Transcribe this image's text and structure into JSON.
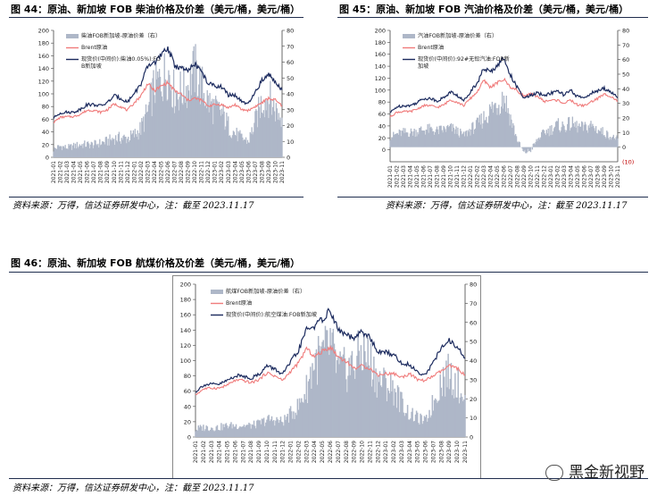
{
  "figures": [
    {
      "title": "图 44：原油、新加坡 FOB 柴油价格及价差（美元/桶，美元/桶）",
      "source": "资料来源：万得，信达证券研发中心，注：截至 2023.11.17"
    },
    {
      "title": "图 45：原油、新加坡 FOB 汽油价格及价差（美元/桶，美元/桶）",
      "source": "资料来源：万得，信达证券研发中心，注：截至 2023.11.17"
    },
    {
      "title": "图 46：原油、新加坡 FOB 航煤价格及价差（美元/桶，美元/桶）",
      "source": "资料来源：万得，信达证券研发中心，注：截至 2023.11.17"
    }
  ],
  "watermark": "黑金新视野",
  "colors": {
    "spread": "#aeb7c8",
    "brent": "#f07c7c",
    "product": "#1b2a5e",
    "rule": "#1f2d4e"
  },
  "months": [
    "2021-01",
    "2021-02",
    "2021-03",
    "2021-04",
    "2021-05",
    "2021-06",
    "2021-07",
    "2021-08",
    "2021-09",
    "2021-10",
    "2021-11",
    "2021-12",
    "2022-01",
    "2022-02",
    "2022-03",
    "2022-04",
    "2022-05",
    "2022-06",
    "2022-07",
    "2022-08",
    "2022-09",
    "2022-10",
    "2022-11",
    "2022-12",
    "2023-01",
    "2023-02",
    "2023-03",
    "2023-04",
    "2023-05",
    "2023-06",
    "2023-07",
    "2023-08",
    "2023-09",
    "2023-10",
    "2023-11"
  ],
  "brent": [
    55,
    63,
    64,
    64,
    68,
    74,
    74,
    71,
    75,
    84,
    80,
    74,
    86,
    97,
    116,
    105,
    112,
    118,
    105,
    99,
    90,
    93,
    90,
    81,
    83,
    83,
    78,
    83,
    75,
    74,
    80,
    86,
    93,
    90,
    81
  ],
  "chart_data": [
    {
      "type": "line",
      "y_left": {
        "ylim": [
          0,
          200
        ],
        "ticks": [
          0,
          20,
          40,
          60,
          80,
          100,
          120,
          140,
          160,
          180,
          200
        ]
      },
      "y_right": {
        "ylim": [
          0,
          80
        ],
        "ticks": [
          0,
          10,
          20,
          30,
          40,
          50,
          60,
          70,
          80
        ]
      },
      "x": "months",
      "series": [
        {
          "name": "柴油FOB新加坡-原油价差（右）",
          "axis": "right",
          "style": "area",
          "values": [
            5,
            7,
            6,
            7,
            8,
            8,
            8,
            9,
            10,
            12,
            12,
            12,
            14,
            18,
            28,
            45,
            48,
            55,
            40,
            42,
            45,
            55,
            45,
            35,
            30,
            28,
            20,
            15,
            12,
            10,
            22,
            35,
            38,
            30,
            25
          ]
        },
        {
          "name": "Brent原油",
          "axis": "left",
          "values": "brent"
        },
        {
          "name": "现货价(中间价):柴油0.05%):FOB新加坡",
          "axis": "left",
          "values": [
            62,
            70,
            71,
            71,
            76,
            83,
            83,
            81,
            86,
            97,
            93,
            87,
            101,
            115,
            143,
            150,
            160,
            173,
            145,
            141,
            135,
            148,
            135,
            116,
            113,
            111,
            98,
            98,
            87,
            84,
            102,
            121,
            131,
            120,
            106
          ]
        }
      ]
    },
    {
      "type": "line",
      "y_left": {
        "ylim": [
          -20,
          200
        ],
        "ticks": [
          0,
          20,
          40,
          60,
          80,
          100,
          120,
          140,
          160,
          180,
          200
        ]
      },
      "y_right": {
        "ylim": [
          -10,
          80
        ],
        "ticks": [
          0,
          10,
          20,
          30,
          40,
          50,
          60,
          70,
          80
        ],
        "negative_tick_label": "(10)"
      },
      "x": "months",
      "series": [
        {
          "name": "汽油FOB新加坡-原油价差（右）",
          "axis": "right",
          "style": "area",
          "values": [
            7,
            9,
            10,
            10,
            11,
            12,
            12,
            11,
            12,
            13,
            11,
            8,
            12,
            15,
            20,
            25,
            30,
            35,
            20,
            5,
            -4,
            -2,
            5,
            10,
            12,
            15,
            14,
            16,
            14,
            13,
            15,
            12,
            10,
            7,
            6
          ]
        },
        {
          "name": "Brent原油",
          "axis": "left",
          "values": "brent"
        },
        {
          "name": "现货价(中间价):92#无铅汽油:FOB新加坡",
          "axis": "left",
          "values": [
            62,
            72,
            74,
            74,
            79,
            86,
            86,
            82,
            87,
            97,
            91,
            82,
            98,
            112,
            136,
            130,
            142,
            153,
            125,
            104,
            86,
            91,
            95,
            91,
            95,
            98,
            92,
            99,
            89,
            87,
            95,
            98,
            103,
            97,
            87
          ]
        }
      ]
    },
    {
      "type": "line",
      "y_left": {
        "ylim": [
          0,
          200
        ],
        "ticks": [
          0,
          20,
          40,
          60,
          80,
          100,
          120,
          140,
          160,
          180,
          200
        ]
      },
      "y_right": {
        "ylim": [
          0,
          80
        ],
        "ticks": [
          0,
          10,
          20,
          30,
          40,
          50,
          60,
          70,
          80
        ]
      },
      "x": "months",
      "series": [
        {
          "name": "航煤FOB新加坡-原油价差（右）",
          "axis": "right",
          "style": "area",
          "values": [
            4,
            5,
            5,
            5,
            6,
            6,
            6,
            6,
            7,
            9,
            9,
            8,
            12,
            16,
            25,
            40,
            42,
            48,
            35,
            35,
            38,
            45,
            40,
            30,
            28,
            25,
            18,
            12,
            10,
            8,
            18,
            30,
            33,
            28,
            22
          ]
        },
        {
          "name": "Brent原油",
          "axis": "left",
          "values": "brent"
        },
        {
          "name": "现货价(中间价):航空煤油:FOB新加坡",
          "axis": "left",
          "values": [
            59,
            68,
            69,
            69,
            74,
            80,
            80,
            77,
            82,
            93,
            89,
            82,
            98,
            113,
            141,
            145,
            154,
            166,
            140,
            134,
            128,
            138,
            130,
            111,
            111,
            108,
            96,
            95,
            85,
            82,
            98,
            116,
            126,
            118,
            103
          ]
        }
      ]
    }
  ]
}
